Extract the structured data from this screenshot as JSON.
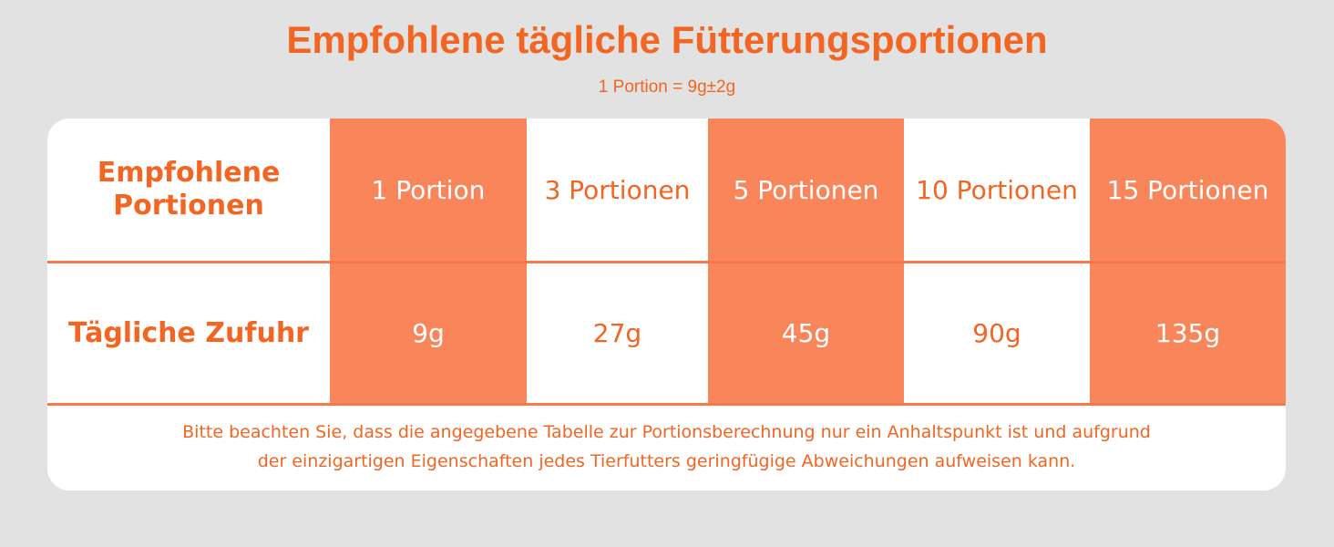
{
  "title": "Empfohlene tägliche Fütterungsportionen",
  "subtitle": "1 Portion = 9g±2g",
  "table": {
    "row_headers": [
      "Empfohlene Portionen",
      "Tägliche Zufuhr"
    ],
    "portions": [
      "1 Portion",
      "3 Portionen",
      "5 Portionen",
      "10 Portionen",
      "15 Portionen"
    ],
    "intake": [
      "9g",
      "27g",
      "45g",
      "90g",
      "135g"
    ],
    "highlighted_columns": [
      0,
      2,
      4
    ]
  },
  "note": {
    "line1": "Bitte beachten Sie, dass die angegebene Tabelle zur Portionsberechnung nur ein Anhaltspunkt ist und aufgrund",
    "line2": "der einzigartigen Eigenschaften jedes Tierfutters geringfügige Abweichungen aufweisen kann."
  },
  "colors": {
    "background": "#e1e2e1",
    "accent": "#f26522",
    "highlight_fill": "#f9865a",
    "card": "#ffffff"
  }
}
